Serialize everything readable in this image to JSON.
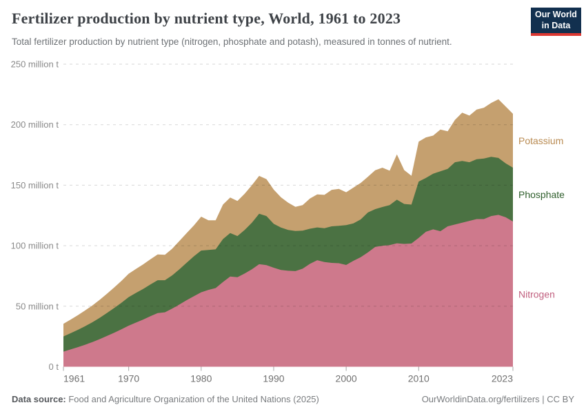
{
  "header": {
    "title": "Fertilizer production by nutrient type, World, 1961 to 2023",
    "subtitle": "Total fertilizer production by nutrient type (nitrogen, phosphate and potash), measured in tonnes of nutrient.",
    "logo": {
      "line1": "Our World",
      "line2": "in Data",
      "bg_color": "#12304f",
      "accent_color": "#dc3832"
    }
  },
  "chart_data": {
    "type": "area",
    "stacked": true,
    "title": "Fertilizer production by nutrient type, World, 1961 to 2023",
    "ylabel": "tonnes of nutrient",
    "years": {
      "start": 1961,
      "end": 2023,
      "step": 1
    },
    "xticks": [
      1961,
      1970,
      1980,
      1990,
      2000,
      2010,
      2023
    ],
    "ylim": [
      0,
      250
    ],
    "yticks": [
      {
        "v": 0,
        "label": "0 t"
      },
      {
        "v": 50,
        "label": "50 million t"
      },
      {
        "v": 100,
        "label": "100 million t"
      },
      {
        "v": 150,
        "label": "150 million t"
      },
      {
        "v": 200,
        "label": "200 million t"
      },
      {
        "v": 250,
        "label": "250 million t"
      }
    ],
    "grid": "dashed-horizontal",
    "legend_position": "right-inline-labels",
    "unit": "million tonnes",
    "series": [
      {
        "name": "Nitrogen",
        "color": "#ce798c",
        "label_color": "#c05f7e",
        "values": [
          12.5,
          14.3,
          16.2,
          18.2,
          20.4,
          22.8,
          25.4,
          28.1,
          30.9,
          33.9,
          36.5,
          39.0,
          41.8,
          44.3,
          45.0,
          48.0,
          51.5,
          55.0,
          58.3,
          61.5,
          63.5,
          65.0,
          70.0,
          74.5,
          74.0,
          77.0,
          80.5,
          84.7,
          84.0,
          81.8,
          80.0,
          79.3,
          79.0,
          81.0,
          85.0,
          88.0,
          86.5,
          85.8,
          85.5,
          84.1,
          87.5,
          90.5,
          94.5,
          99.0,
          100.0,
          100.5,
          102.0,
          101.5,
          101.8,
          106.5,
          111.5,
          113.5,
          112.0,
          116.0,
          117.5,
          119.0,
          120.5,
          122.0,
          122.0,
          124.5,
          125.5,
          123.5,
          120.0
        ]
      },
      {
        "name": "Phosphate",
        "color": "#4b7243",
        "label_color": "#2e5e2b",
        "values": [
          12.5,
          13.4,
          14.3,
          15.3,
          16.4,
          17.6,
          19.0,
          20.4,
          21.9,
          23.6,
          24.5,
          25.3,
          26.2,
          27.2,
          26.5,
          27.5,
          29.0,
          31.0,
          33.0,
          34.5,
          33.0,
          32.0,
          35.5,
          36.0,
          34.0,
          36.0,
          38.5,
          41.7,
          40.5,
          36.3,
          35.0,
          33.7,
          33.2,
          31.5,
          29.0,
          27.1,
          28.0,
          30.2,
          31.0,
          32.9,
          31.0,
          31.2,
          33.0,
          31.2,
          32.0,
          33.0,
          36.0,
          33.0,
          32.2,
          46.5,
          44.5,
          46.0,
          49.5,
          47.5,
          51.5,
          51.0,
          48.5,
          49.5,
          50.0,
          49.0,
          47.0,
          44.5,
          44.5
        ]
      },
      {
        "name": "Potassium",
        "color": "#c5a06f",
        "label_color": "#b98b52",
        "values": [
          10.5,
          11.3,
          12.1,
          13.0,
          13.9,
          14.9,
          15.9,
          17.0,
          18.1,
          19.3,
          19.8,
          20.3,
          20.8,
          21.3,
          21.0,
          22.0,
          23.5,
          24.5,
          25.5,
          28.0,
          24.5,
          24.0,
          28.5,
          29.3,
          29.0,
          30.0,
          31.0,
          31.3,
          30.5,
          28.3,
          25.0,
          22.5,
          19.9,
          21.0,
          25.0,
          27.3,
          27.5,
          30.2,
          30.5,
          27.2,
          29.5,
          30.2,
          29.5,
          32.1,
          32.5,
          28.5,
          37.5,
          28.0,
          23.8,
          33.0,
          33.5,
          31.5,
          34.5,
          31.0,
          35.0,
          40.0,
          38.5,
          41.0,
          42.0,
          44.5,
          48.5,
          47.0,
          44.5
        ]
      }
    ]
  },
  "footer": {
    "source_label": "Data source:",
    "source_text": " Food and Agriculture Organization of the United Nations (2025)",
    "rights": "OurWorldinData.org/fertilizers | CC BY"
  }
}
